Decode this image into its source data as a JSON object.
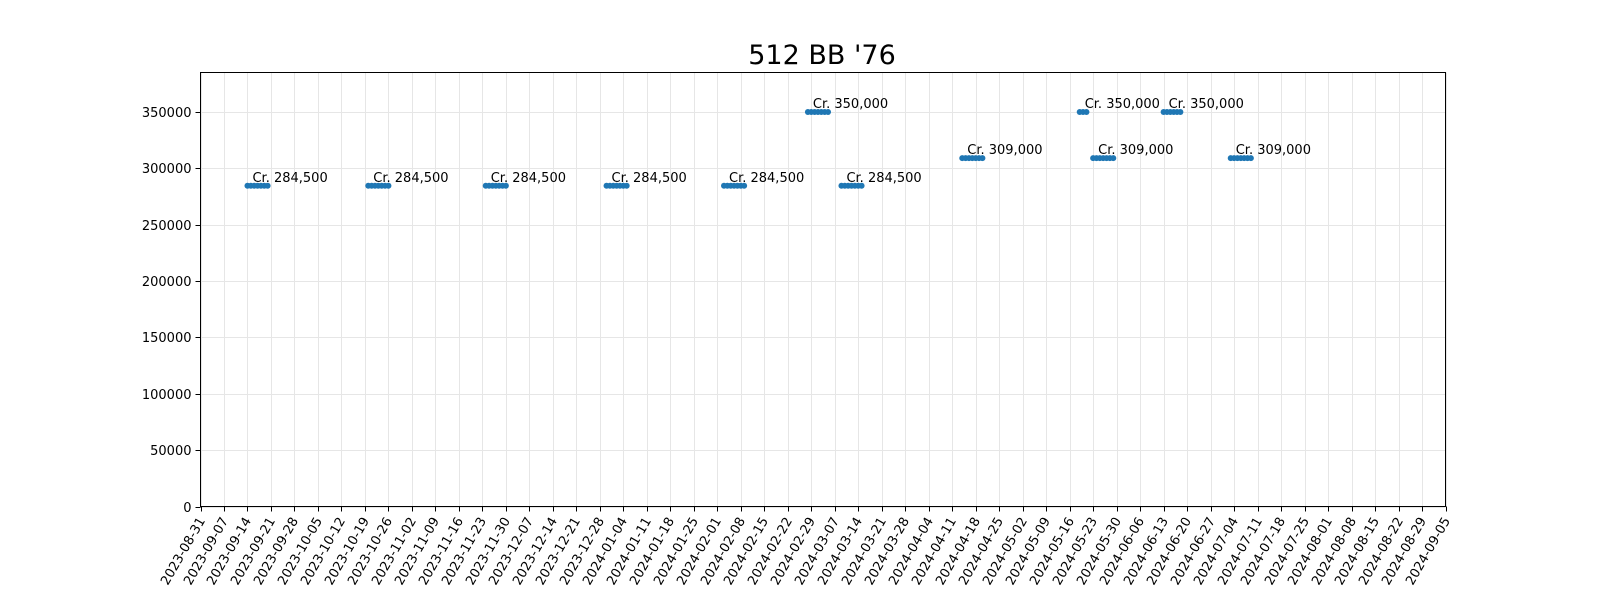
{
  "chart_data": {
    "type": "scatter",
    "title": "512 BB '76",
    "xlabel": "",
    "ylabel": "",
    "xlim": [
      "2023-08-31",
      "2024-09-05"
    ],
    "ylim": [
      0,
      385000
    ],
    "grid": true,
    "x_ticks": [
      "2023-08-31",
      "2023-09-07",
      "2023-09-14",
      "2023-09-21",
      "2023-09-28",
      "2023-10-05",
      "2023-10-12",
      "2023-10-19",
      "2023-10-26",
      "2023-11-02",
      "2023-11-09",
      "2023-11-16",
      "2023-11-23",
      "2023-11-30",
      "2023-12-07",
      "2023-12-14",
      "2023-12-21",
      "2023-12-28",
      "2024-01-04",
      "2024-01-11",
      "2024-01-18",
      "2024-01-25",
      "2024-02-01",
      "2024-02-08",
      "2024-02-15",
      "2024-02-22",
      "2024-02-29",
      "2024-03-07",
      "2024-03-14",
      "2024-03-21",
      "2024-03-28",
      "2024-04-04",
      "2024-04-11",
      "2024-04-18",
      "2024-04-25",
      "2024-05-02",
      "2024-05-09",
      "2024-05-16",
      "2024-05-23",
      "2024-05-30",
      "2024-06-06",
      "2024-06-13",
      "2024-06-20",
      "2024-06-27",
      "2024-07-04",
      "2024-07-11",
      "2024-07-18",
      "2024-07-25",
      "2024-08-01",
      "2024-08-08",
      "2024-08-15",
      "2024-08-22",
      "2024-08-29",
      "2024-09-05"
    ],
    "y_ticks": [
      0,
      50000,
      100000,
      150000,
      200000,
      250000,
      300000,
      350000
    ],
    "marker_color": "#1f77b4",
    "clusters": [
      {
        "dates": [
          "2023-09-14",
          "2023-09-15",
          "2023-09-16",
          "2023-09-17",
          "2023-09-18",
          "2023-09-19",
          "2023-09-20"
        ],
        "value": 284500,
        "label": "Cr. 284,500"
      },
      {
        "dates": [
          "2023-10-20",
          "2023-10-21",
          "2023-10-22",
          "2023-10-23",
          "2023-10-24",
          "2023-10-25",
          "2023-10-26"
        ],
        "value": 284500,
        "label": "Cr. 284,500"
      },
      {
        "dates": [
          "2023-11-24",
          "2023-11-25",
          "2023-11-26",
          "2023-11-27",
          "2023-11-28",
          "2023-11-29",
          "2023-11-30"
        ],
        "value": 284500,
        "label": "Cr. 284,500"
      },
      {
        "dates": [
          "2023-12-30",
          "2023-12-31",
          "2024-01-01",
          "2024-01-02",
          "2024-01-03",
          "2024-01-04",
          "2024-01-05"
        ],
        "value": 284500,
        "label": "Cr. 284,500"
      },
      {
        "dates": [
          "2024-02-03",
          "2024-02-04",
          "2024-02-05",
          "2024-02-06",
          "2024-02-07",
          "2024-02-08",
          "2024-02-09"
        ],
        "value": 284500,
        "label": "Cr. 284,500"
      },
      {
        "dates": [
          "2024-02-28",
          "2024-02-29",
          "2024-03-01",
          "2024-03-02",
          "2024-03-03",
          "2024-03-04",
          "2024-03-05"
        ],
        "value": 350000,
        "label": "Cr. 350,000"
      },
      {
        "dates": [
          "2024-03-09",
          "2024-03-10",
          "2024-03-11",
          "2024-03-12",
          "2024-03-13",
          "2024-03-14",
          "2024-03-15"
        ],
        "value": 284500,
        "label": "Cr. 284,500"
      },
      {
        "dates": [
          "2024-04-14",
          "2024-04-15",
          "2024-04-16",
          "2024-04-17",
          "2024-04-18",
          "2024-04-19",
          "2024-04-20"
        ],
        "value": 309000,
        "label": "Cr. 309,000"
      },
      {
        "dates": [
          "2024-05-19",
          "2024-05-20",
          "2024-05-21"
        ],
        "value": 350000,
        "label": "Cr. 350,000"
      },
      {
        "dates": [
          "2024-05-23",
          "2024-05-24",
          "2024-05-25",
          "2024-05-26",
          "2024-05-27",
          "2024-05-28",
          "2024-05-29"
        ],
        "value": 309000,
        "label": "Cr. 309,000"
      },
      {
        "dates": [
          "2024-06-13",
          "2024-06-14",
          "2024-06-15",
          "2024-06-16",
          "2024-06-17",
          "2024-06-18"
        ],
        "value": 350000,
        "label": "Cr. 350,000"
      },
      {
        "dates": [
          "2024-07-03",
          "2024-07-04",
          "2024-07-05",
          "2024-07-06",
          "2024-07-07",
          "2024-07-08",
          "2024-07-09"
        ],
        "value": 309000,
        "label": "Cr. 309,000"
      }
    ]
  }
}
